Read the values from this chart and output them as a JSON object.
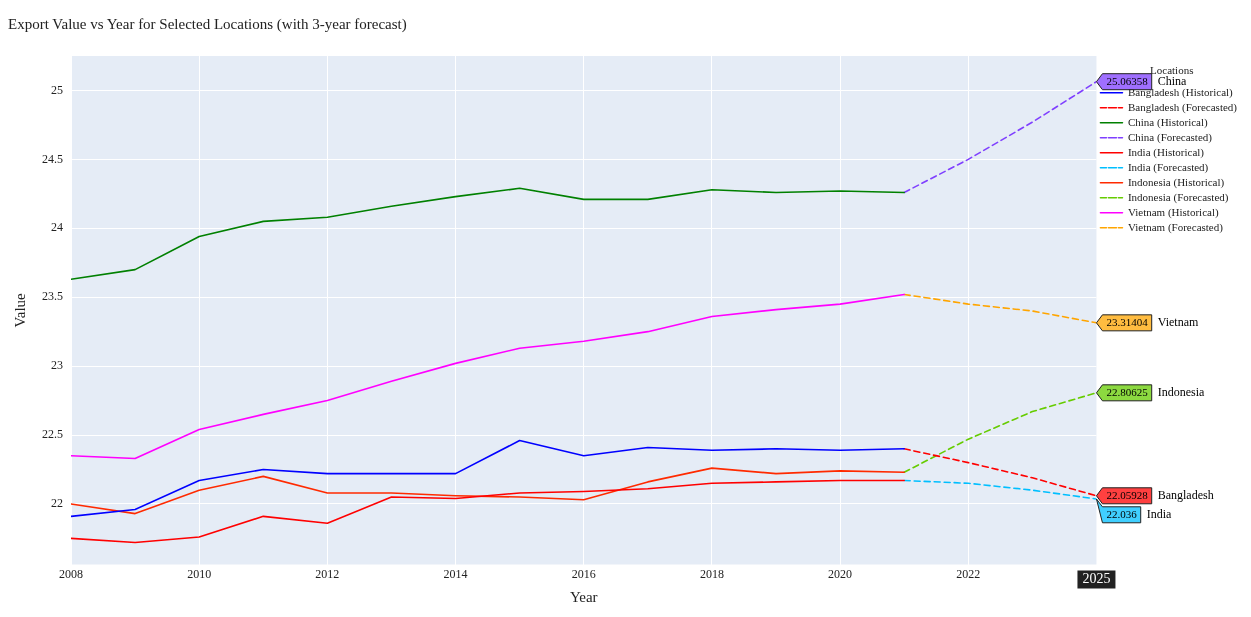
{
  "chart_data": {
    "type": "line",
    "title": "Export Value vs Year for Selected Locations (with 3-year forecast)",
    "xlabel": "Year",
    "ylabel": "Value",
    "legend_title": "Locations",
    "xlim": [
      2008,
      2024
    ],
    "xticks": [
      2008,
      2010,
      2012,
      2014,
      2016,
      2018,
      2020,
      2022
    ],
    "ylim": [
      21.56,
      25.25
    ],
    "yticks": [
      22,
      22.5,
      23,
      23.5,
      24,
      24.5,
      25
    ],
    "grid": true,
    "legend": "right",
    "marker": "none",
    "series": [
      {
        "name": "Bangladesh (Historical)",
        "color": "#0000ff",
        "line_style": "solid",
        "x": [
          2008,
          2009,
          2010,
          2011,
          2012,
          2013,
          2014,
          2015,
          2016,
          2017,
          2018,
          2019,
          2020,
          2021
        ],
        "values": [
          21.91,
          21.96,
          22.17,
          22.25,
          22.22,
          22.22,
          22.22,
          22.46,
          22.35,
          22.41,
          22.39,
          22.4,
          22.39,
          22.4
        ]
      },
      {
        "name": "Bangladesh (Forecasted)",
        "color": "#ff0000",
        "line_style": "dashed",
        "x": [
          2021,
          2022,
          2023,
          2024
        ],
        "values": [
          22.4,
          22.3,
          22.19,
          22.05928
        ],
        "value_labels": [
          null,
          null,
          null,
          "22.05928"
        ]
      },
      {
        "name": "China (Historical)",
        "color": "#008000",
        "line_style": "solid",
        "x": [
          2008,
          2009,
          2010,
          2011,
          2012,
          2013,
          2014,
          2015,
          2016,
          2017,
          2018,
          2019,
          2020,
          2021
        ],
        "values": [
          23.63,
          23.7,
          23.94,
          24.05,
          24.08,
          24.16,
          24.23,
          24.29,
          24.21,
          24.21,
          24.28,
          24.26,
          24.27,
          24.26
        ]
      },
      {
        "name": "China (Forecasted)",
        "color": "#7f3fff",
        "line_style": "dashed",
        "x": [
          2021,
          2022,
          2023,
          2024
        ],
        "values": [
          24.26,
          24.5,
          24.77,
          25.06358
        ],
        "value_labels": [
          null,
          null,
          null,
          "25.06358"
        ]
      },
      {
        "name": "India (Historical)",
        "color": "#ff0000",
        "line_style": "solid",
        "x": [
          2008,
          2009,
          2010,
          2011,
          2012,
          2013,
          2014,
          2015,
          2016,
          2017,
          2018,
          2019,
          2020,
          2021
        ],
        "values": [
          21.75,
          21.72,
          21.76,
          21.91,
          21.86,
          22.05,
          22.04,
          22.08,
          22.09,
          22.11,
          22.15,
          22.16,
          22.17,
          22.17
        ]
      },
      {
        "name": "India (Forecasted)",
        "color": "#00bfff",
        "line_style": "dashed",
        "x": [
          2021,
          2022,
          2023,
          2024
        ],
        "values": [
          22.17,
          22.15,
          22.1,
          22.036
        ],
        "value_labels": [
          null,
          null,
          null,
          "22.036"
        ]
      },
      {
        "name": "Indonesia (Historical)",
        "color": "#ff2a00",
        "line_style": "solid",
        "x": [
          2008,
          2009,
          2010,
          2011,
          2012,
          2013,
          2014,
          2015,
          2016,
          2017,
          2018,
          2019,
          2020,
          2021
        ],
        "values": [
          22.0,
          21.93,
          22.1,
          22.2,
          22.08,
          22.08,
          22.06,
          22.05,
          22.03,
          22.16,
          22.26,
          22.22,
          22.24,
          22.23
        ]
      },
      {
        "name": "Indonesia (Forecasted)",
        "color": "#66cc00",
        "line_style": "dashed",
        "x": [
          2021,
          2022,
          2023,
          2024
        ],
        "values": [
          22.23,
          22.47,
          22.67,
          22.80625
        ],
        "value_labels": [
          null,
          null,
          null,
          "22.80625"
        ]
      },
      {
        "name": "Vietnam (Historical)",
        "color": "#ff00ff",
        "line_style": "solid",
        "x": [
          2008,
          2009,
          2010,
          2011,
          2012,
          2013,
          2014,
          2015,
          2016,
          2017,
          2018,
          2019,
          2020,
          2021
        ],
        "values": [
          22.35,
          22.33,
          22.54,
          22.65,
          22.75,
          22.89,
          23.02,
          23.13,
          23.18,
          23.25,
          23.36,
          23.41,
          23.45,
          23.52
        ]
      },
      {
        "name": "Vietnam (Forecasted)",
        "color": "#ffa500",
        "line_style": "dashed",
        "x": [
          2021,
          2022,
          2023,
          2024
        ],
        "values": [
          23.52,
          23.45,
          23.4,
          23.31404
        ],
        "value_labels": [
          null,
          null,
          null,
          "23.31404"
        ]
      }
    ],
    "annotations": [
      "Bangladesh",
      "China",
      "India",
      "Indonesia",
      "Vietnam",
      "2025"
    ]
  }
}
